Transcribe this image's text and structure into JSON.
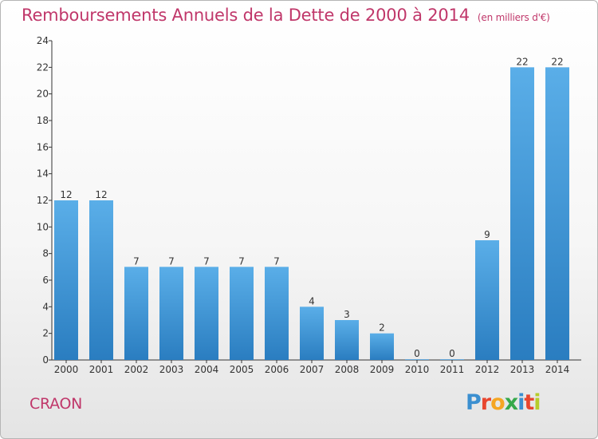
{
  "header": {
    "title": "Remboursements Annuels de la Dette de 2000 à 2014",
    "subtitle": "(en milliers d'€)"
  },
  "footer": {
    "city": "CRAON",
    "logo": "Proxiti"
  },
  "colors": {
    "title": "#c0376a",
    "bar_light": "#5aaee8",
    "bar_dark": "#2a7dc0",
    "axis": "#333333"
  },
  "chart_data": {
    "type": "bar",
    "title": "Remboursements Annuels de la Dette de 2000 à 2014",
    "subtitle": "(en milliers d'€)",
    "xlabel": "",
    "ylabel": "",
    "categories": [
      "2000",
      "2001",
      "2002",
      "2003",
      "2004",
      "2005",
      "2006",
      "2007",
      "2008",
      "2009",
      "2010",
      "2011",
      "2012",
      "2013",
      "2014"
    ],
    "values": [
      12,
      12,
      7,
      7,
      7,
      7,
      7,
      4,
      3,
      2,
      0,
      0,
      9,
      22,
      22
    ],
    "data_labels": [
      "12",
      "12",
      "7",
      "7",
      "7",
      "7",
      "7",
      "4",
      "3",
      "2",
      "0",
      "0",
      "9",
      "22",
      "22"
    ],
    "ylim": [
      0,
      24
    ],
    "yticks": [
      0,
      2,
      4,
      6,
      8,
      10,
      12,
      14,
      16,
      18,
      20,
      22,
      24
    ],
    "grid": false,
    "legend": "none"
  }
}
